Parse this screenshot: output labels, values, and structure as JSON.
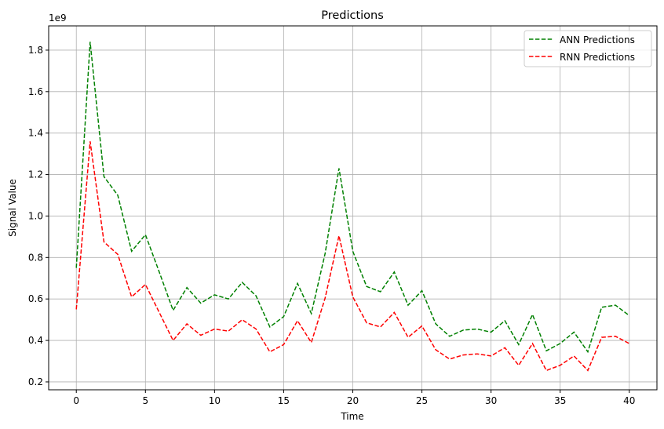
{
  "chart_data": {
    "type": "line",
    "title": "Predictions",
    "xlabel": "Time",
    "ylabel": "Signal Value",
    "y_offset_label": "1e9",
    "xlim": [
      -2,
      42
    ],
    "ylim": [
      0.162,
      1.917
    ],
    "xticks": [
      0,
      5,
      10,
      15,
      20,
      25,
      30,
      35,
      40
    ],
    "xtick_labels": [
      "0",
      "5",
      "10",
      "15",
      "20",
      "25",
      "30",
      "35",
      "40"
    ],
    "yticks": [
      0.2,
      0.4,
      0.6,
      0.8,
      1.0,
      1.2,
      1.4,
      1.6,
      1.8
    ],
    "ytick_labels": [
      "0.2",
      "0.4",
      "0.6",
      "0.8",
      "1.0",
      "1.2",
      "1.4",
      "1.6",
      "1.8"
    ],
    "grid": true,
    "legend_placement": "top-right",
    "x": [
      0,
      1,
      2,
      3,
      4,
      5,
      6,
      7,
      8,
      9,
      10,
      11,
      12,
      13,
      14,
      15,
      16,
      17,
      18,
      19,
      20,
      21,
      22,
      23,
      24,
      25,
      26,
      27,
      28,
      29,
      30,
      31,
      32,
      33,
      34,
      35,
      36,
      37,
      38,
      39,
      40
    ],
    "series": [
      {
        "name": "ANN Predictions",
        "color": "#008000",
        "style": "dashed",
        "values": [
          0.75,
          1.84,
          1.19,
          1.1,
          0.83,
          0.91,
          0.73,
          0.545,
          0.655,
          0.58,
          0.62,
          0.6,
          0.68,
          0.615,
          0.465,
          0.515,
          0.675,
          0.53,
          0.82,
          1.23,
          0.83,
          0.66,
          0.635,
          0.73,
          0.57,
          0.64,
          0.48,
          0.42,
          0.45,
          0.455,
          0.44,
          0.495,
          0.38,
          0.525,
          0.35,
          0.385,
          0.44,
          0.345,
          0.56,
          0.57,
          0.52
        ]
      },
      {
        "name": "RNN Predictions",
        "color": "#ff0000",
        "style": "dashed",
        "values": [
          0.55,
          1.36,
          0.875,
          0.815,
          0.61,
          0.67,
          0.535,
          0.4,
          0.48,
          0.425,
          0.455,
          0.445,
          0.5,
          0.455,
          0.345,
          0.38,
          0.495,
          0.39,
          0.605,
          0.905,
          0.61,
          0.485,
          0.465,
          0.535,
          0.415,
          0.47,
          0.355,
          0.31,
          0.33,
          0.335,
          0.325,
          0.365,
          0.28,
          0.385,
          0.255,
          0.28,
          0.325,
          0.255,
          0.415,
          0.42,
          0.385
        ]
      }
    ]
  }
}
